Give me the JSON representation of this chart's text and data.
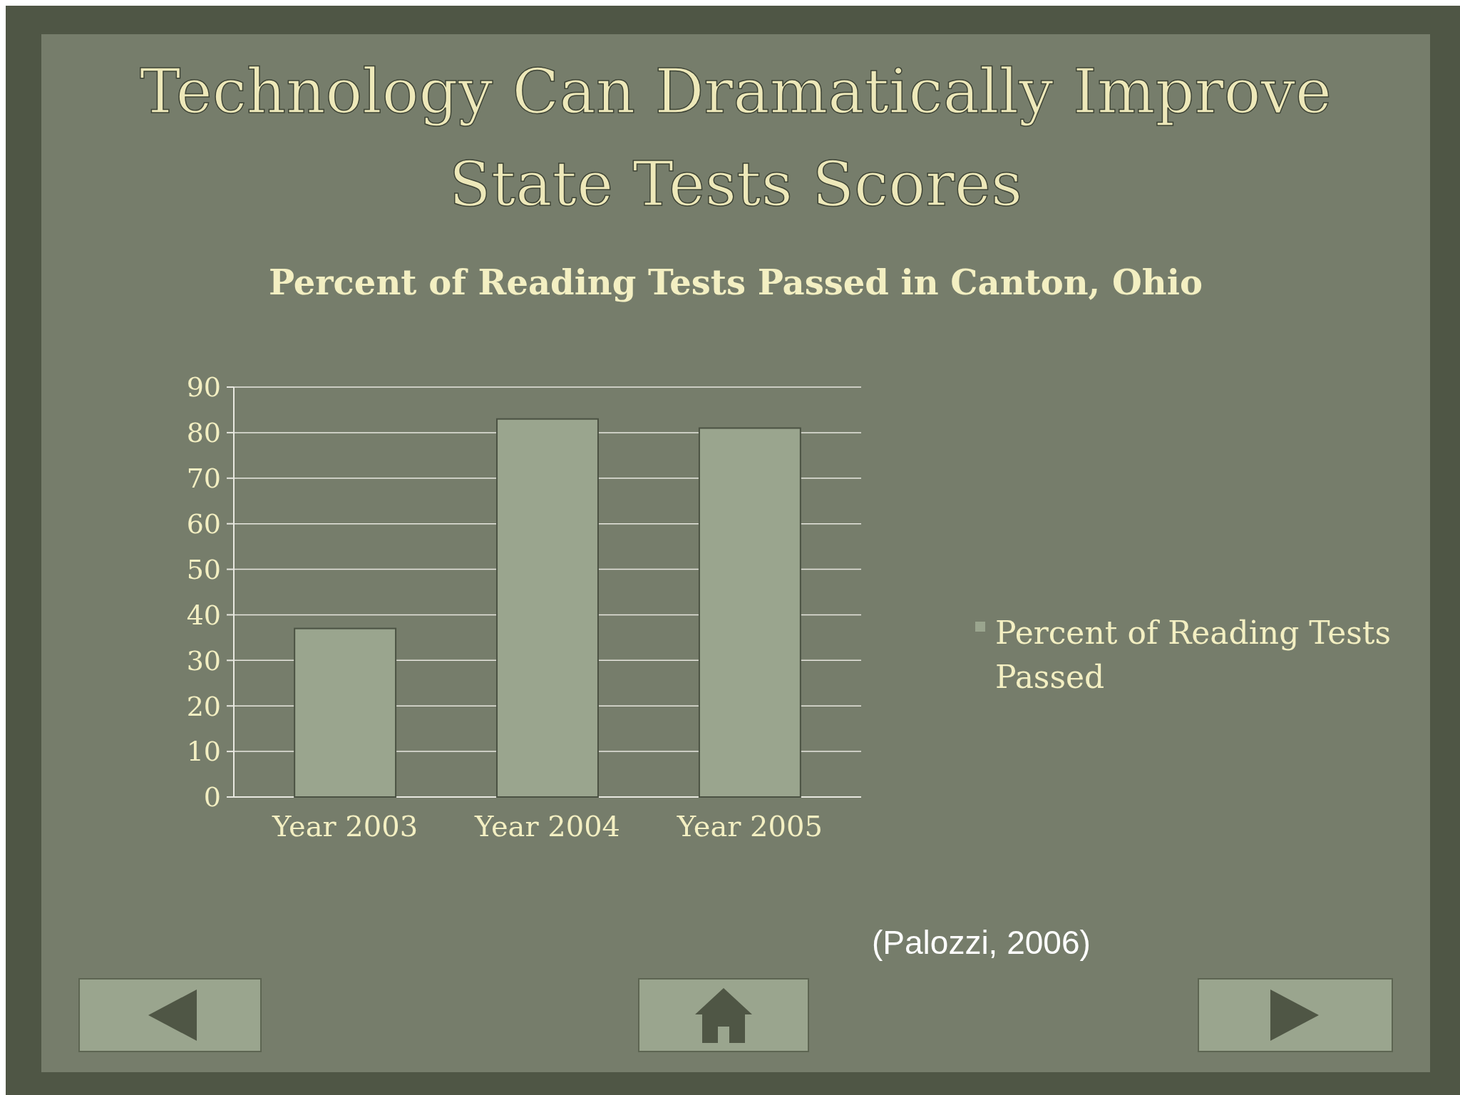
{
  "chart_data": {
    "type": "bar",
    "title": "Technology Can Dramatically Improve State Tests Scores",
    "subtitle": "Percent of Reading Tests Passed in Canton, Ohio",
    "categories": [
      "Year 2003",
      "Year 2004",
      "Year 2005"
    ],
    "series": [
      {
        "name": "Percent of Reading Tests Passed",
        "color": "#9aa58e",
        "values": [
          37,
          83,
          81
        ]
      }
    ],
    "ylim": [
      0,
      90
    ],
    "yticks": [
      0,
      10,
      20,
      30,
      40,
      50,
      60,
      70,
      80,
      90
    ],
    "grid": "y",
    "legend": "right",
    "annotations": [
      "(Palozzi, 2006)"
    ]
  }
}
